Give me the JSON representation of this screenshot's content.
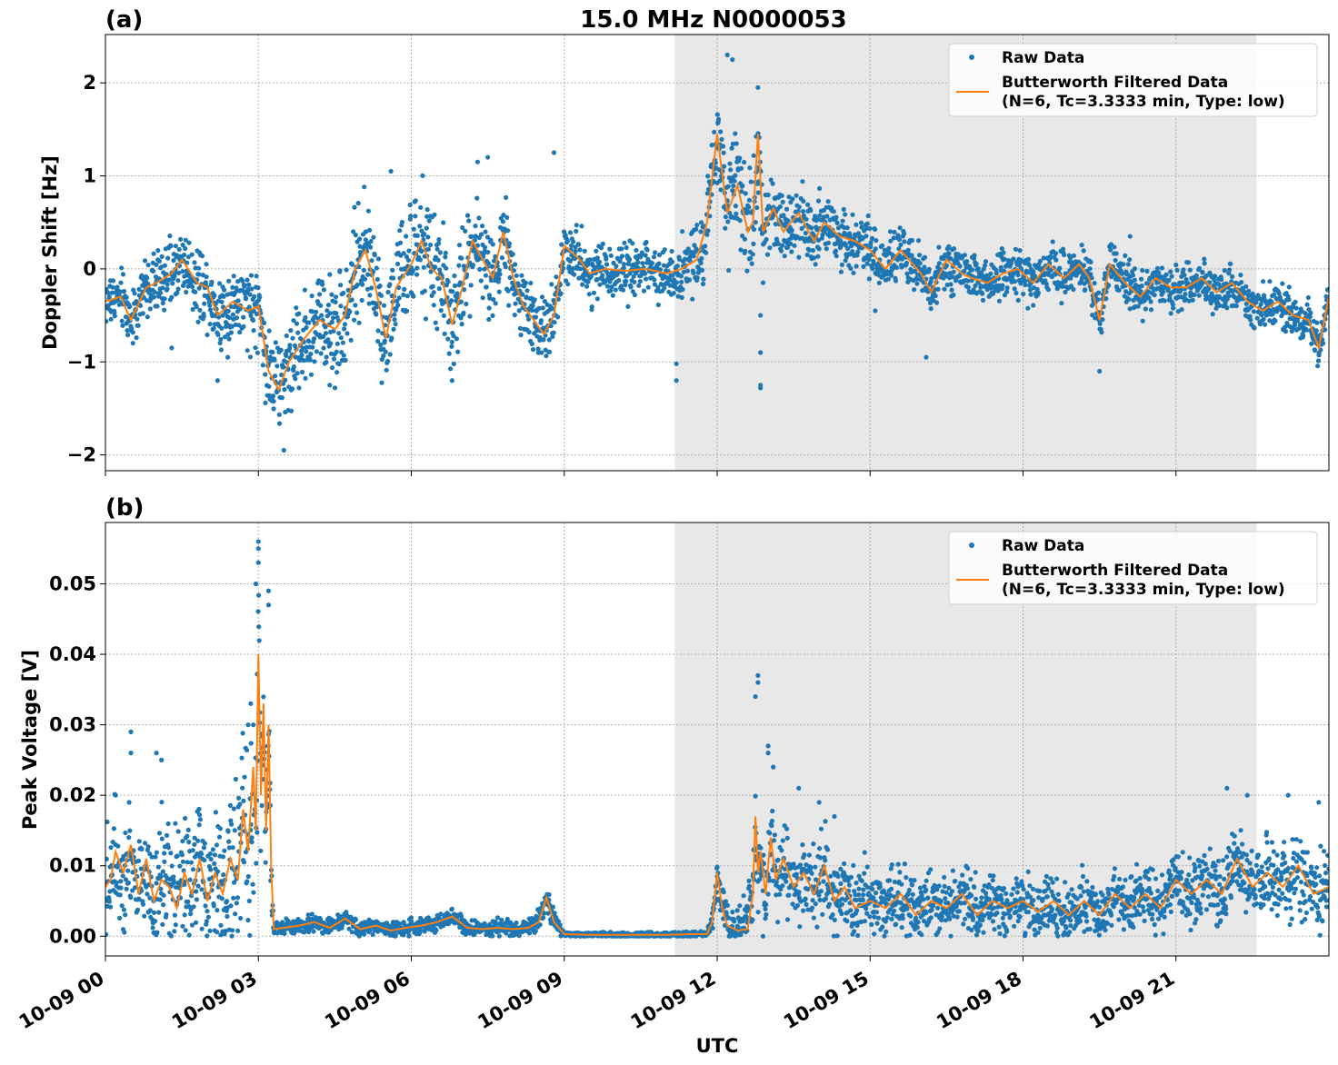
{
  "figure": {
    "title": "15.0 MHz N0000053",
    "xlabel": "UTC",
    "colors": {
      "raw": "#1f77b4",
      "filtered": "#ff7f0e",
      "shade": "#e8e8e8",
      "grid": "#b0b0b0"
    }
  },
  "chart_data": [
    {
      "type": "scatter",
      "panel_label": "(a)",
      "ylabel": "Doppler Shift [Hz]",
      "xlim_hours": [
        0,
        24
      ],
      "ylim": [
        -2.17,
        2.52
      ],
      "grid": true,
      "legend_position": "top-right",
      "shaded_region_hours": [
        11.17,
        22.58
      ],
      "x_tick_labels": [
        "10-09 00",
        "10-09 03",
        "10-09 06",
        "10-09 09",
        "10-09 12",
        "10-09 15",
        "10-09 18",
        "10-09 21"
      ],
      "x_ticks_hours": [
        0,
        3,
        6,
        9,
        12,
        15,
        18,
        21
      ],
      "y_ticks": [
        -2,
        -1,
        0,
        1,
        2
      ],
      "y_tick_labels": [
        "−2",
        "−1",
        "0",
        "1",
        "2"
      ],
      "series": [
        {
          "name": "Raw Data",
          "marker": "dot",
          "spread": [
            [
              0,
              0.22
            ],
            [
              3,
              0.35
            ],
            [
              3.5,
              0.4
            ],
            [
              5,
              0.45
            ],
            [
              7,
              0.45
            ],
            [
              9,
              0.25
            ],
            [
              11.1,
              0.22
            ],
            [
              12,
              0.4
            ],
            [
              12.8,
              0.45
            ],
            [
              13.5,
              0.3
            ],
            [
              16,
              0.2
            ],
            [
              24,
              0.18
            ]
          ],
          "outliers": [
            [
              12.2,
              2.3
            ],
            [
              12.3,
              2.25
            ],
            [
              12.8,
              1.95
            ],
            [
              12.85,
              -1.28
            ],
            [
              12.85,
              -1.25
            ],
            [
              11.2,
              -1.2
            ],
            [
              12.85,
              -0.9
            ],
            [
              12.85,
              -0.5
            ],
            [
              3.5,
              -1.95
            ],
            [
              2.2,
              -1.2
            ],
            [
              2.4,
              -0.95
            ],
            [
              6.8,
              -1.2
            ],
            [
              8.8,
              1.25
            ],
            [
              7.3,
              1.15
            ],
            [
              7.5,
              1.2
            ],
            [
              5.6,
              1.05
            ],
            [
              4.4,
              -1.25
            ],
            [
              1.3,
              -0.85
            ],
            [
              16.1,
              -0.95
            ],
            [
              19.5,
              -1.1
            ],
            [
              20.1,
              0.35
            ],
            [
              15.1,
              -0.45
            ],
            [
              11.2,
              -1.02
            ]
          ]
        },
        {
          "name": "Butterworth Filtered Data\n(N=6, Tc=3.3333 min, Type: low)",
          "line": true,
          "x": [
            0,
            0.3,
            0.5,
            0.8,
            1.0,
            1.3,
            1.5,
            1.8,
            2.0,
            2.2,
            2.5,
            2.8,
            3.0,
            3.2,
            3.4,
            3.6,
            3.9,
            4.2,
            4.5,
            4.7,
            4.9,
            5.1,
            5.3,
            5.5,
            5.7,
            6.0,
            6.2,
            6.4,
            6.6,
            6.8,
            7.0,
            7.2,
            7.4,
            7.6,
            7.8,
            8.0,
            8.2,
            8.4,
            8.6,
            8.8,
            9.0,
            9.3,
            9.5,
            9.8,
            10.2,
            10.6,
            11.0,
            11.3,
            11.6,
            11.8,
            12.0,
            12.2,
            12.4,
            12.6,
            12.7,
            12.8,
            12.9,
            13.1,
            13.3,
            13.6,
            13.9,
            14.1,
            14.4,
            14.7,
            15.0,
            15.3,
            15.6,
            16.0,
            16.2,
            16.5,
            16.8,
            17.0,
            17.3,
            17.6,
            17.9,
            18.2,
            18.5,
            18.8,
            19.1,
            19.3,
            19.5,
            19.7,
            20.0,
            20.3,
            20.6,
            20.9,
            21.2,
            21.5,
            21.8,
            22.1,
            22.4,
            22.7,
            23.0,
            23.3,
            23.6,
            23.8,
            24.0
          ],
          "y": [
            -0.35,
            -0.3,
            -0.55,
            -0.2,
            -0.15,
            -0.05,
            0.1,
            -0.15,
            -0.2,
            -0.5,
            -0.35,
            -0.45,
            -0.4,
            -1.1,
            -1.3,
            -1.0,
            -0.75,
            -0.55,
            -0.65,
            -0.5,
            0.0,
            0.2,
            -0.2,
            -0.75,
            -0.2,
            0.05,
            0.3,
            0.0,
            -0.1,
            -0.6,
            -0.2,
            0.3,
            0.1,
            -0.1,
            0.4,
            -0.1,
            -0.4,
            -0.55,
            -0.7,
            -0.5,
            0.25,
            0.1,
            -0.05,
            0.0,
            -0.02,
            0.0,
            -0.05,
            0.0,
            0.1,
            0.5,
            1.45,
            0.6,
            0.9,
            0.4,
            0.5,
            1.45,
            0.4,
            0.65,
            0.4,
            0.6,
            0.3,
            0.5,
            0.35,
            0.3,
            0.2,
            0.0,
            0.2,
            -0.05,
            -0.25,
            0.1,
            -0.05,
            -0.1,
            -0.15,
            -0.05,
            0.0,
            -0.15,
            0.05,
            -0.1,
            0.05,
            -0.1,
            -0.55,
            0.05,
            -0.15,
            -0.3,
            -0.1,
            -0.2,
            -0.2,
            -0.1,
            -0.25,
            -0.15,
            -0.35,
            -0.45,
            -0.35,
            -0.5,
            -0.55,
            -0.85,
            -0.3
          ]
        }
      ]
    },
    {
      "type": "scatter",
      "panel_label": "(b)",
      "ylabel": "Peak Voltage [V]",
      "xlim_hours": [
        0,
        24
      ],
      "ylim": [
        -0.0028,
        0.0587
      ],
      "grid": true,
      "legend_position": "top-right",
      "shaded_region_hours": [
        11.17,
        22.58
      ],
      "x_tick_labels": [
        "10-09 00",
        "10-09 03",
        "10-09 06",
        "10-09 09",
        "10-09 12",
        "10-09 15",
        "10-09 18",
        "10-09 21"
      ],
      "x_ticks_hours": [
        0,
        3,
        6,
        9,
        12,
        15,
        18,
        21
      ],
      "y_ticks": [
        0.0,
        0.01,
        0.02,
        0.03,
        0.04,
        0.05
      ],
      "y_tick_labels": [
        "0.00",
        "0.01",
        "0.02",
        "0.03",
        "0.04",
        "0.05"
      ],
      "series": [
        {
          "name": "Raw Data",
          "marker": "dot",
          "spread": [
            [
              0,
              0.006
            ],
            [
              2.5,
              0.008
            ],
            [
              2.9,
              0.015
            ],
            [
              3.2,
              0.01
            ],
            [
              3.3,
              0.0008
            ],
            [
              8.4,
              0.001
            ],
            [
              8.7,
              0.002
            ],
            [
              9.0,
              0.0003
            ],
            [
              11.8,
              0.0003
            ],
            [
              12.0,
              0.002
            ],
            [
              12.7,
              0.004
            ],
            [
              13.5,
              0.0045
            ],
            [
              16,
              0.0035
            ],
            [
              20,
              0.003
            ],
            [
              24,
              0.005
            ]
          ],
          "outliers": [
            [
              0.5,
              0.029
            ],
            [
              0.5,
              0.026
            ],
            [
              1.0,
              0.026
            ],
            [
              1.1,
              0.025
            ],
            [
              3.0,
              0.056
            ],
            [
              3.0,
              0.055
            ],
            [
              3.0,
              0.053
            ],
            [
              2.95,
              0.05
            ],
            [
              3.2,
              0.049
            ],
            [
              3.2,
              0.047
            ],
            [
              12.8,
              0.037
            ],
            [
              12.8,
              0.036
            ],
            [
              12.75,
              0.034
            ],
            [
              13.0,
              0.027
            ],
            [
              13.0,
              0.026
            ],
            [
              13.1,
              0.024
            ],
            [
              13.6,
              0.021
            ],
            [
              14.0,
              0.019
            ],
            [
              14.3,
              0.017
            ],
            [
              22.0,
              0.021
            ],
            [
              22.4,
              0.02
            ],
            [
              23.2,
              0.02
            ],
            [
              23.8,
              0.019
            ],
            [
              0.2,
              0.02
            ],
            [
              2.8,
              0.03
            ],
            [
              2.85,
              0.033
            ],
            [
              12.9,
              0.0
            ]
          ]
        },
        {
          "name": "Butterworth Filtered Data\n(N=6, Tc=3.3333 min, Type: low)",
          "line": true,
          "x": [
            0,
            0.1,
            0.2,
            0.35,
            0.5,
            0.65,
            0.8,
            0.95,
            1.1,
            1.25,
            1.4,
            1.55,
            1.7,
            1.85,
            2.0,
            2.15,
            2.3,
            2.45,
            2.6,
            2.7,
            2.8,
            2.9,
            2.95,
            3.0,
            3.05,
            3.1,
            3.15,
            3.2,
            3.25,
            3.3,
            3.5,
            3.8,
            4.1,
            4.4,
            4.7,
            5.0,
            5.3,
            5.6,
            5.9,
            6.2,
            6.5,
            6.8,
            7.1,
            7.4,
            7.7,
            8.0,
            8.3,
            8.5,
            8.65,
            8.8,
            9.0,
            9.5,
            10.0,
            10.5,
            11.0,
            11.5,
            11.8,
            11.9,
            12.0,
            12.1,
            12.2,
            12.4,
            12.6,
            12.7,
            12.75,
            12.8,
            12.85,
            12.95,
            13.05,
            13.15,
            13.3,
            13.5,
            13.7,
            13.9,
            14.1,
            14.3,
            14.5,
            14.7,
            15.0,
            15.3,
            15.6,
            15.9,
            16.2,
            16.5,
            16.8,
            17.1,
            17.4,
            17.7,
            18.0,
            18.3,
            18.6,
            18.9,
            19.2,
            19.5,
            19.8,
            20.1,
            20.4,
            20.7,
            21.0,
            21.3,
            21.6,
            21.9,
            22.2,
            22.5,
            22.8,
            23.1,
            23.4,
            23.7,
            24.0
          ],
          "y": [
            0.007,
            0.008,
            0.012,
            0.009,
            0.013,
            0.006,
            0.011,
            0.005,
            0.008,
            0.007,
            0.004,
            0.009,
            0.006,
            0.011,
            0.005,
            0.009,
            0.006,
            0.011,
            0.008,
            0.018,
            0.012,
            0.024,
            0.015,
            0.04,
            0.02,
            0.033,
            0.015,
            0.03,
            0.01,
            0.001,
            0.0012,
            0.0015,
            0.002,
            0.0012,
            0.0025,
            0.001,
            0.0015,
            0.0008,
            0.0012,
            0.0015,
            0.002,
            0.0028,
            0.0012,
            0.001,
            0.0012,
            0.001,
            0.0012,
            0.002,
            0.0055,
            0.002,
            0.0003,
            0.0002,
            0.0002,
            0.0002,
            0.0002,
            0.0003,
            0.0003,
            0.002,
            0.009,
            0.004,
            0.0015,
            0.0008,
            0.001,
            0.006,
            0.017,
            0.009,
            0.012,
            0.006,
            0.014,
            0.008,
            0.011,
            0.007,
            0.009,
            0.006,
            0.01,
            0.005,
            0.007,
            0.004,
            0.005,
            0.004,
            0.006,
            0.003,
            0.005,
            0.004,
            0.006,
            0.003,
            0.005,
            0.004,
            0.005,
            0.0035,
            0.005,
            0.003,
            0.005,
            0.003,
            0.006,
            0.004,
            0.006,
            0.004,
            0.008,
            0.006,
            0.008,
            0.006,
            0.011,
            0.007,
            0.009,
            0.007,
            0.01,
            0.006,
            0.007
          ]
        }
      ]
    }
  ]
}
